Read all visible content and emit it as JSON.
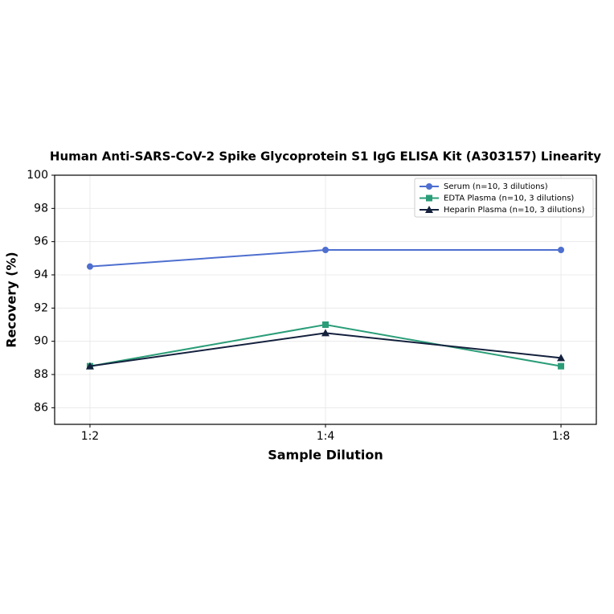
{
  "chart_data": {
    "type": "line",
    "title": "Human Anti-SARS-CoV-2 Spike Glycoprotein S1 IgG ELISA Kit (A303157) Linearity",
    "x_label": "Sample Dilution",
    "y_label": "Recovery (%)",
    "categories": [
      "1:2",
      "1:4",
      "1:8"
    ],
    "series": [
      {
        "name": "Serum (n=10, 3 dilutions)",
        "color": "#4e6fcf",
        "marker": "circle",
        "values": [
          94.5,
          95.5,
          95.5
        ]
      },
      {
        "name": "EDTA Plasma (n=10, 3 dilutions)",
        "color": "#2a9d78",
        "marker": "square",
        "values": [
          88.5,
          91,
          88.5
        ]
      },
      {
        "name": "Heparin Plasma (n=10, 3 dilutions)",
        "color": "#14213d",
        "marker": "triangle",
        "values": [
          88.5,
          90.5,
          89
        ]
      }
    ],
    "ylim": [
      85,
      100
    ],
    "yticks": [
      86,
      88,
      90,
      92,
      94,
      96,
      98,
      100
    ],
    "grid": true,
    "legend": "upper right"
  }
}
